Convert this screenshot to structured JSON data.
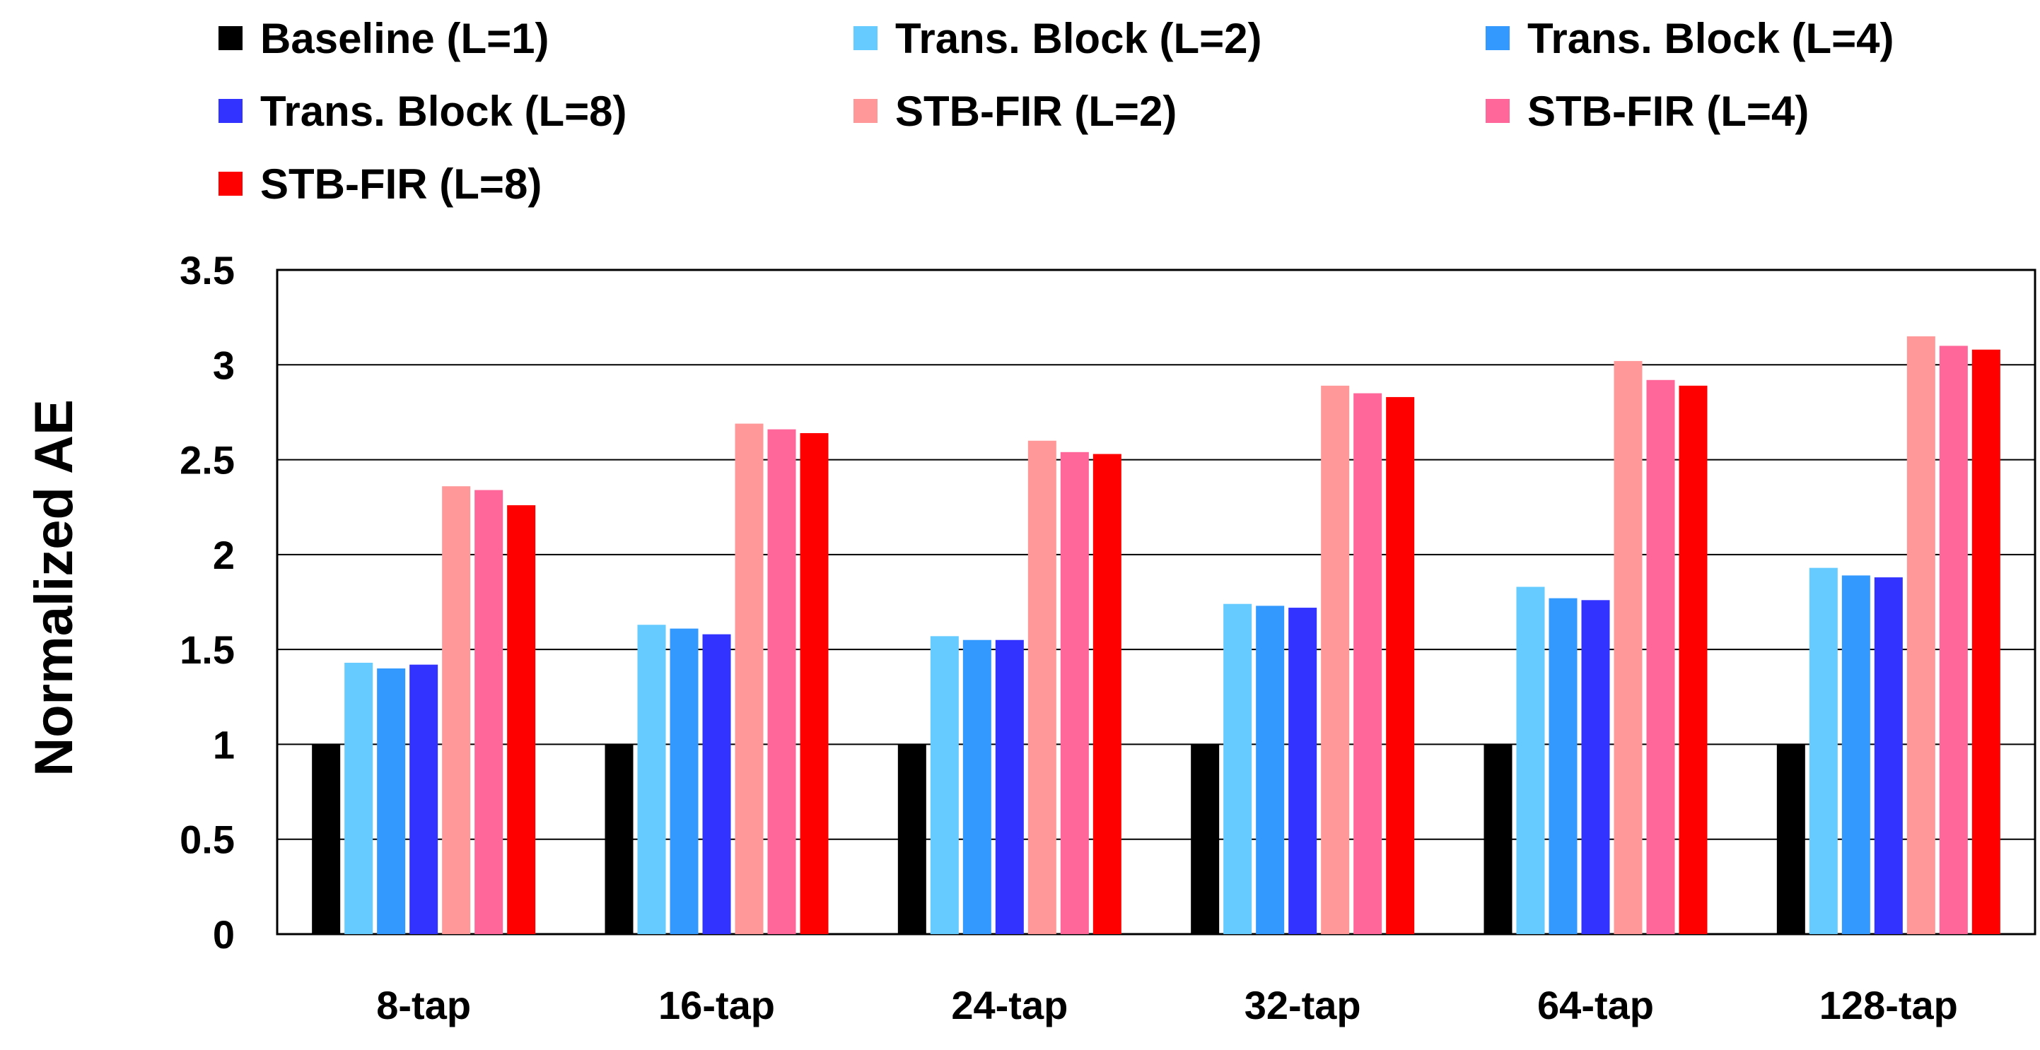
{
  "chart_data": {
    "type": "bar",
    "title": "",
    "xlabel": "",
    "ylabel": "Normalized AE",
    "ylim": [
      0,
      3.5
    ],
    "yticks": [
      0,
      0.5,
      1,
      1.5,
      2,
      2.5,
      3,
      3.5
    ],
    "ytick_labels": [
      "0",
      "0.5",
      "1",
      "1.5",
      "2",
      "2.5",
      "3",
      "3.5"
    ],
    "grid": "horizontal",
    "legend_position": "top",
    "categories": [
      "8-tap",
      "16-tap",
      "24-tap",
      "32-tap",
      "64-tap",
      "128-tap"
    ],
    "series": [
      {
        "name": "Baseline (L=1)",
        "color": "#000000",
        "values": [
          1,
          1,
          1,
          1,
          1,
          1
        ]
      },
      {
        "name": "Trans. Block (L=2)",
        "color": "#66ccff",
        "values": [
          1.43,
          1.63,
          1.57,
          1.74,
          1.83,
          1.93
        ]
      },
      {
        "name": "Trans. Block (L=4)",
        "color": "#3399ff",
        "values": [
          1.4,
          1.61,
          1.55,
          1.73,
          1.77,
          1.89
        ]
      },
      {
        "name": "Trans. Block (L=8)",
        "color": "#3333ff",
        "values": [
          1.42,
          1.58,
          1.55,
          1.72,
          1.76,
          1.88
        ]
      },
      {
        "name": "STB-FIR (L=2)",
        "color": "#ff9999",
        "values": [
          2.36,
          2.69,
          2.6,
          2.89,
          3.02,
          3.15
        ]
      },
      {
        "name": "STB-FIR (L=4)",
        "color": "#ff6699",
        "values": [
          2.34,
          2.66,
          2.54,
          2.85,
          2.92,
          3.1
        ]
      },
      {
        "name": "STB-FIR (L=8)",
        "color": "#ff0000",
        "values": [
          2.26,
          2.64,
          2.53,
          2.83,
          2.89,
          3.08
        ]
      }
    ]
  }
}
